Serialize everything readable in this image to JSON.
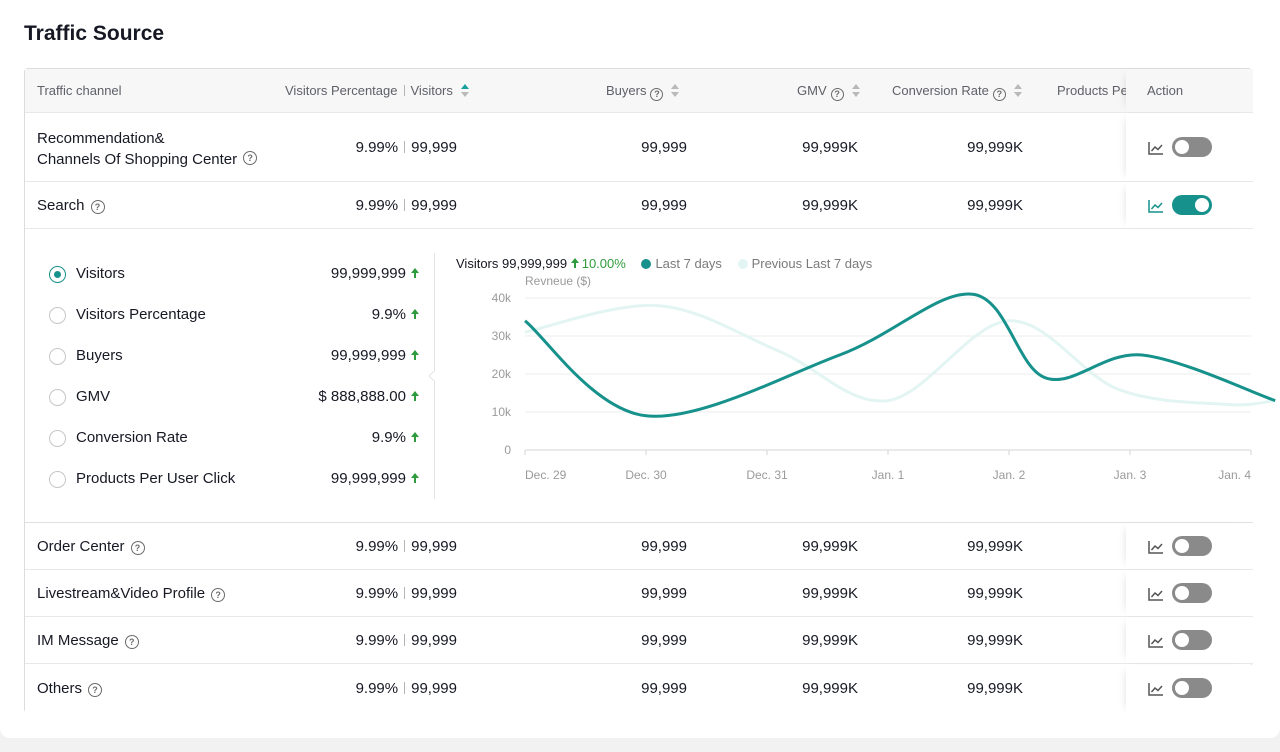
{
  "title": "Traffic Source",
  "columns": {
    "channel": "Traffic channel",
    "visitors_percentage": "Visitors Percentage",
    "visitors": "Visitors",
    "buyers": "Buyers",
    "gmv": "GMV",
    "conversion_rate": "Conversion Rate",
    "products_per": "Products Pe",
    "action": "Action"
  },
  "rows": [
    {
      "channel_line1": "Recommendation&",
      "channel_line2": "Channels Of Shopping Center",
      "pct": "9.99%",
      "visitors": "99,999",
      "buyers": "99,999",
      "gmv": "99,999K",
      "conversion": "99,999K",
      "toggle_on": false
    },
    {
      "channel": "Search",
      "pct": "9.99%",
      "visitors": "99,999",
      "buyers": "99,999",
      "gmv": "99,999K",
      "conversion": "99,999K",
      "toggle_on": true
    },
    {
      "channel": "Order Center",
      "pct": "9.99%",
      "visitors": "99,999",
      "buyers": "99,999",
      "gmv": "99,999K",
      "conversion": "99,999K",
      "toggle_on": false
    },
    {
      "channel": "Livestream&Video Profile",
      "pct": "9.99%",
      "visitors": "99,999",
      "buyers": "99,999",
      "gmv": "99,999K",
      "conversion": "99,999K",
      "toggle_on": false
    },
    {
      "channel": "IM Message",
      "pct": "9.99%",
      "visitors": "99,999",
      "buyers": "99,999",
      "gmv": "99,999K",
      "conversion": "99,999K",
      "toggle_on": false
    },
    {
      "channel": "Others",
      "pct": "9.99%",
      "visitors": "99,999",
      "buyers": "99,999",
      "gmv": "99,999K",
      "conversion": "99,999K",
      "toggle_on": false
    }
  ],
  "metrics": [
    {
      "label": "Visitors",
      "value": "99,999,999",
      "selected": true
    },
    {
      "label": "Visitors Percentage",
      "value": "9.9%",
      "selected": false
    },
    {
      "label": "Buyers",
      "value": "99,999,999",
      "selected": false
    },
    {
      "label": "GMV",
      "value": "$ 888,888.00",
      "selected": false
    },
    {
      "label": "Conversion Rate",
      "value": "9.9%",
      "selected": false
    },
    {
      "label": "Products Per User Click",
      "value": "99,999,999",
      "selected": false
    }
  ],
  "legend": {
    "metric": "Visitors",
    "value": "99,999,999",
    "change": "10.00%",
    "series1": "Last 7 days",
    "series2": "Previous Last 7 days"
  },
  "colors": {
    "accent": "#17918b",
    "series_previous": "#e3f5f2",
    "increase": "#2e9b3c"
  },
  "chart_data": {
    "type": "line",
    "ylabel": "Revneue ($)",
    "x": [
      "Dec. 29",
      "Dec. 30",
      "Dec. 31",
      "Jan. 1",
      "Jan. 2",
      "Jan. 3",
      "Jan. 4"
    ],
    "y_ticks": [
      "0",
      "10k",
      "20k",
      "30k",
      "40k"
    ],
    "ylim": [
      0,
      40000
    ],
    "grid": true,
    "series": [
      {
        "name": "Last 7 days",
        "x": [
          0,
          1.0,
          2.6,
          3.7,
          4.3,
          5.1,
          6.2
        ],
        "y": [
          34000,
          9000,
          25000,
          41000,
          19000,
          25000,
          13000
        ]
      },
      {
        "name": "Previous Last 7 days",
        "x": [
          0,
          1.1,
          2.1,
          3.0,
          4.0,
          4.9,
          5.8,
          6.2
        ],
        "y": [
          31000,
          38000,
          26000,
          13000,
          34000,
          16000,
          12000,
          13000
        ]
      }
    ]
  }
}
